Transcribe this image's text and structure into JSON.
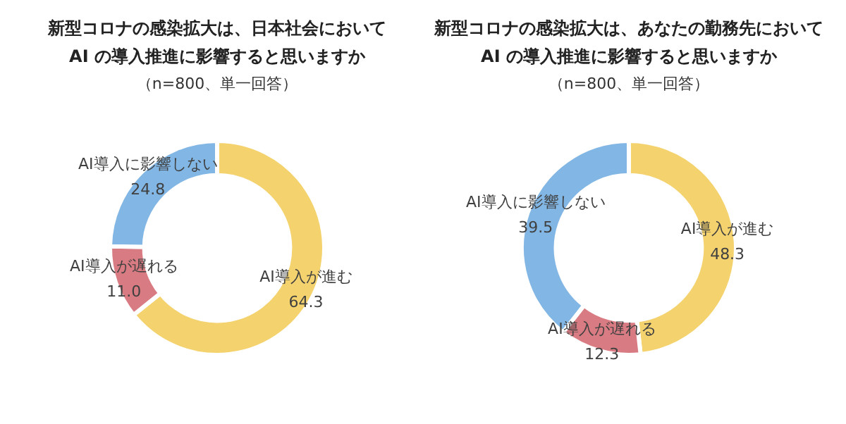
{
  "chart_data": [
    {
      "type": "donut",
      "title": "新型コロナの感染拡大は、日本社会において\nAI の導入推進に影響すると思いますか",
      "subtitle": "（n=800、単一回答）",
      "categories": [
        "AI導入が進む",
        "AI導入が遅れる",
        "AI導入に影響しない"
      ],
      "values": [
        64.3,
        11.0,
        24.8
      ],
      "value_labels": [
        "64.3",
        "11.0",
        "24.8"
      ],
      "colors": [
        "#f4d26e",
        "#d97b82",
        "#82b6e4"
      ],
      "legend": false
    },
    {
      "type": "donut",
      "title": "新型コロナの感染拡大は、あなたの勤務先において\nAI の導入推進に影響すると思いますか",
      "subtitle": "（n=800、単一回答）",
      "categories": [
        "AI導入が進む",
        "AI導入が遅れる",
        "AI導入に影響しない"
      ],
      "values": [
        48.3,
        12.3,
        39.5
      ],
      "value_labels": [
        "48.3",
        "12.3",
        "39.5"
      ],
      "colors": [
        "#f4d26e",
        "#d97b82",
        "#82b6e4"
      ],
      "legend": false
    }
  ]
}
